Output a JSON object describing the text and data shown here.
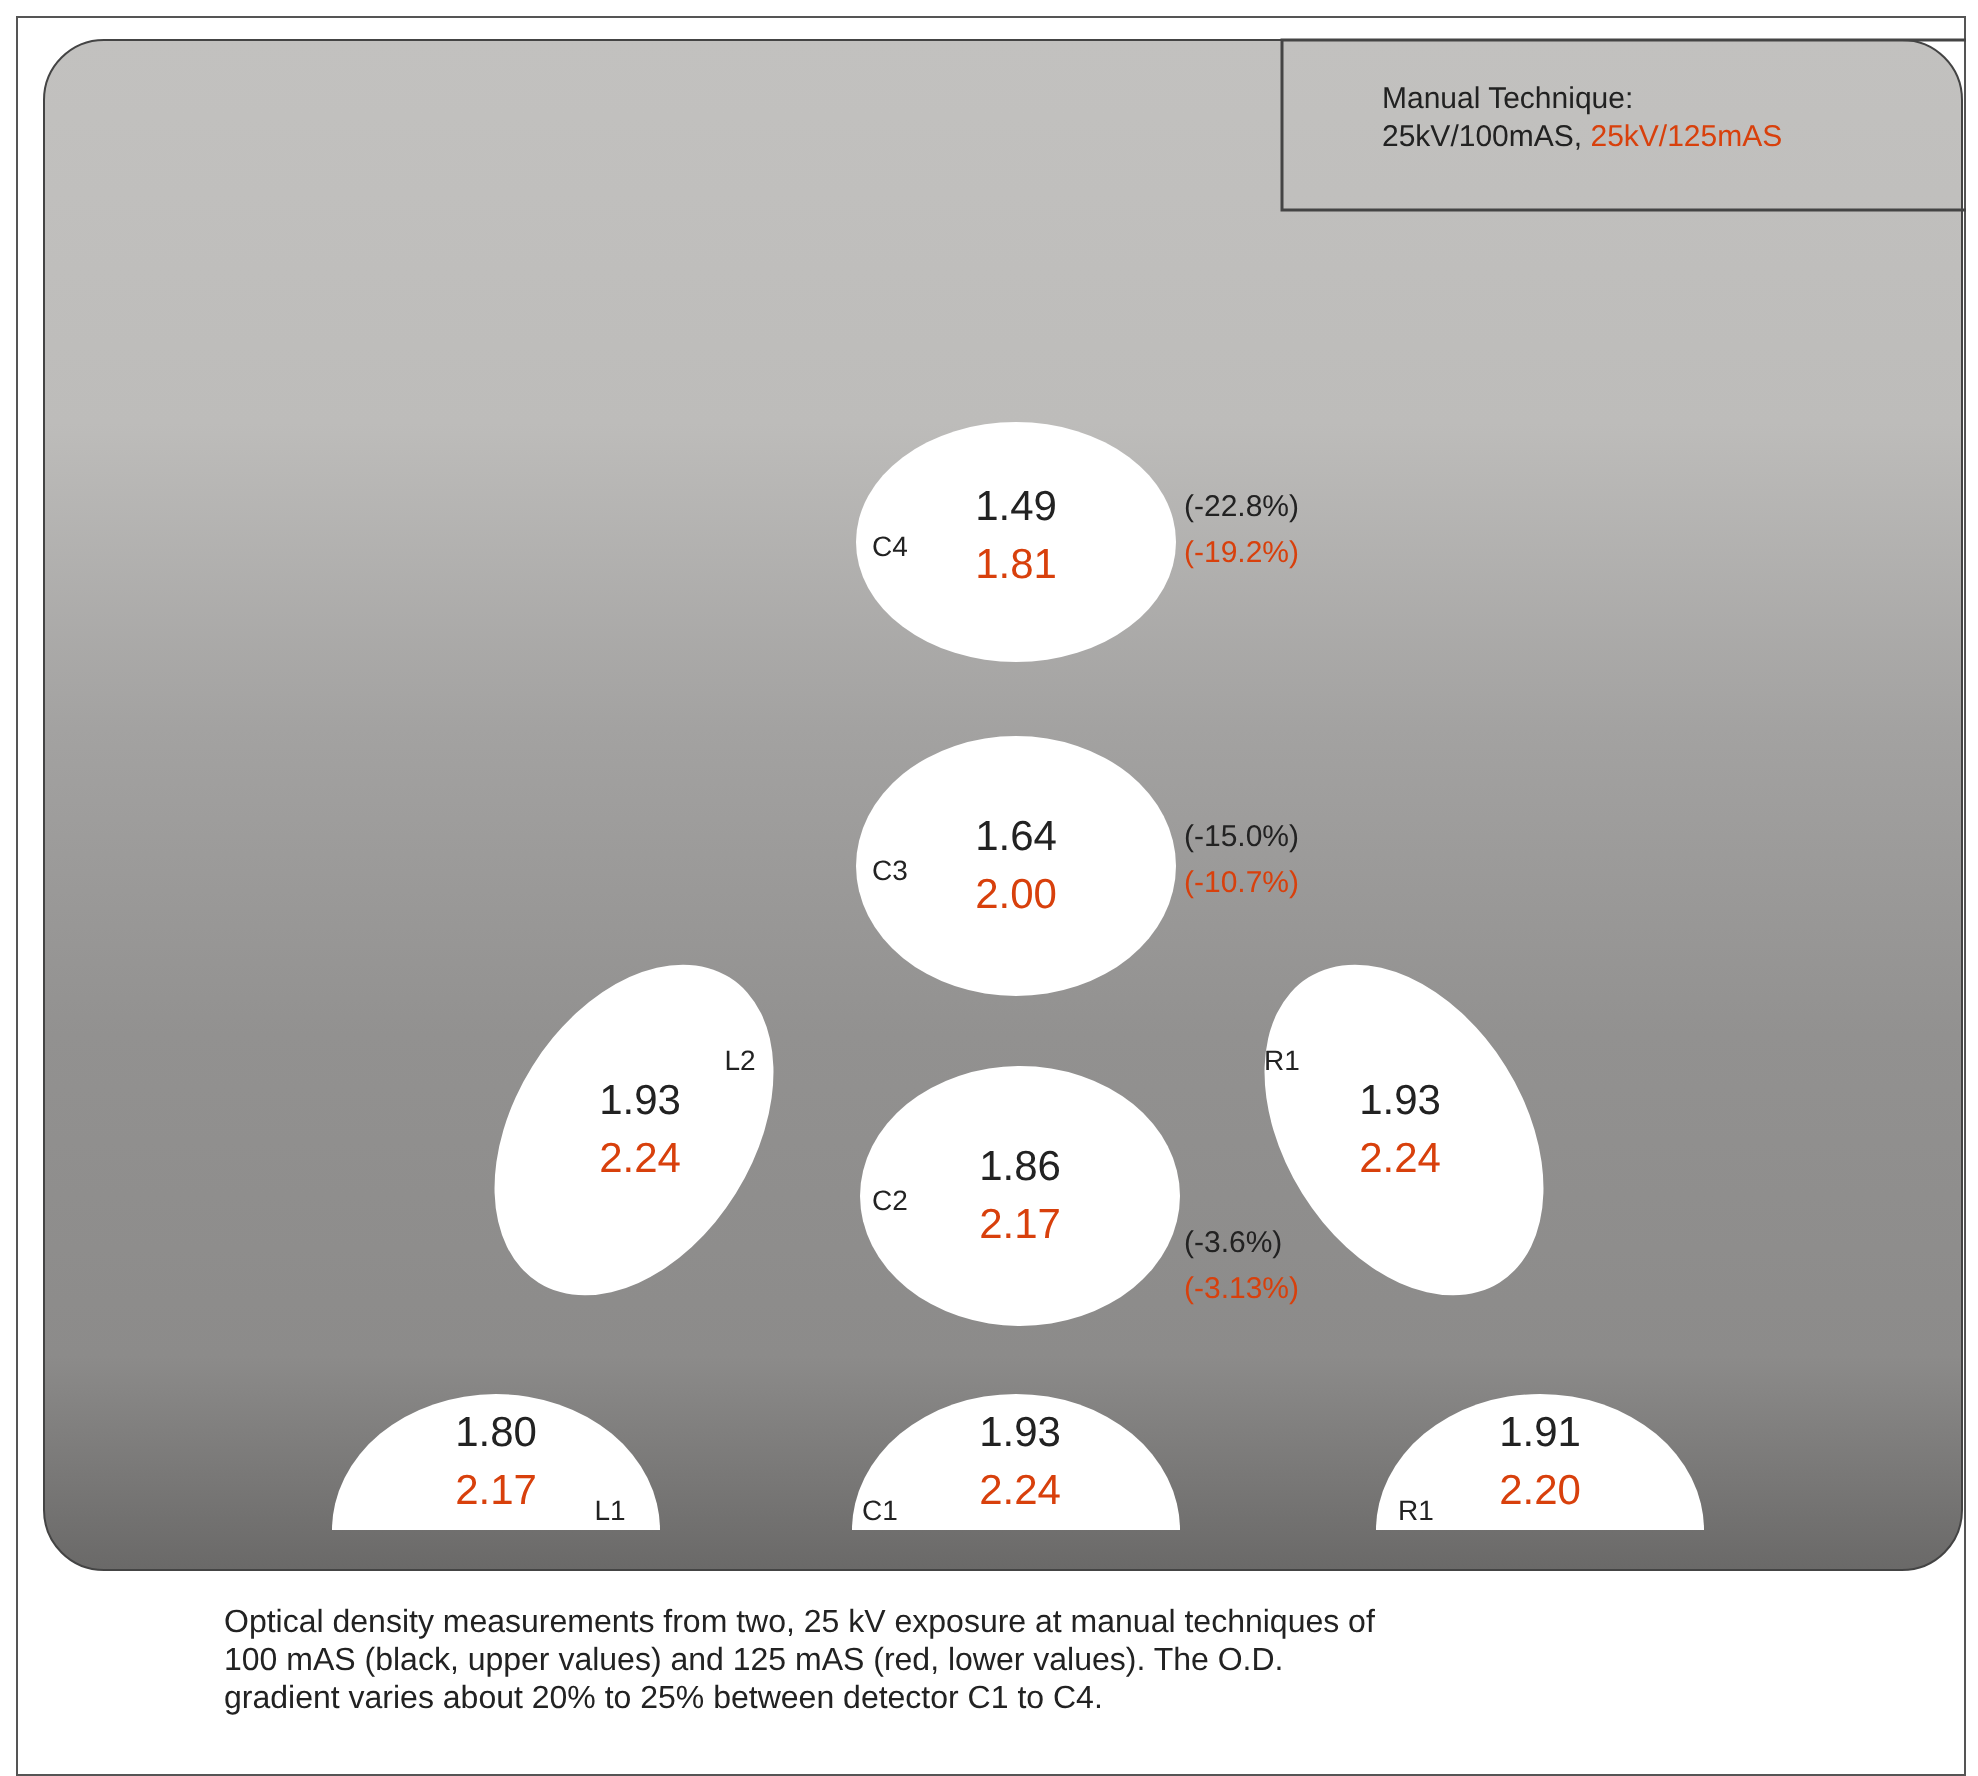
{
  "chart_data": {
    "type": "other",
    "legend_title": "Manual Technique:",
    "data_labels": true,
    "categories": [
      "C4",
      "C3",
      "C2",
      "C1",
      "L2",
      "L1",
      "R1",
      "R1"
    ],
    "series": [
      {
        "name": "25kV/100mAS,",
        "color": "#222222",
        "values": [
          1.49,
          1.64,
          1.86,
          1.93,
          1.93,
          1.8,
          1.93,
          1.91
        ],
        "value_labels": [
          "1.49",
          "1.64",
          "1.86",
          "1.93",
          "1.93",
          "1.80",
          "1.93",
          "1.91"
        ]
      },
      {
        "name": "25kV/125mAS",
        "color": "#d8400c",
        "values": [
          1.81,
          2.0,
          2.17,
          2.24,
          2.24,
          2.17,
          2.24,
          2.2
        ],
        "value_labels": [
          "1.81",
          "2.00",
          "2.17",
          "2.24",
          "2.24",
          "2.17",
          "2.24",
          "2.20"
        ]
      }
    ],
    "annotations": [
      "(-22.8%)",
      "(-19.2%)",
      "(-15.0%)",
      "(-10.7%)",
      "(-3.6%)",
      "(-3.13%)",
      "Optical density measurements from two, 25 kV exposure at manual techniques of 100 mAS (black, upper values) and 125 mAS (red, lower values).  The O.D. gradient varies about 20% to 25% between detector C1 to C4."
    ]
  }
}
